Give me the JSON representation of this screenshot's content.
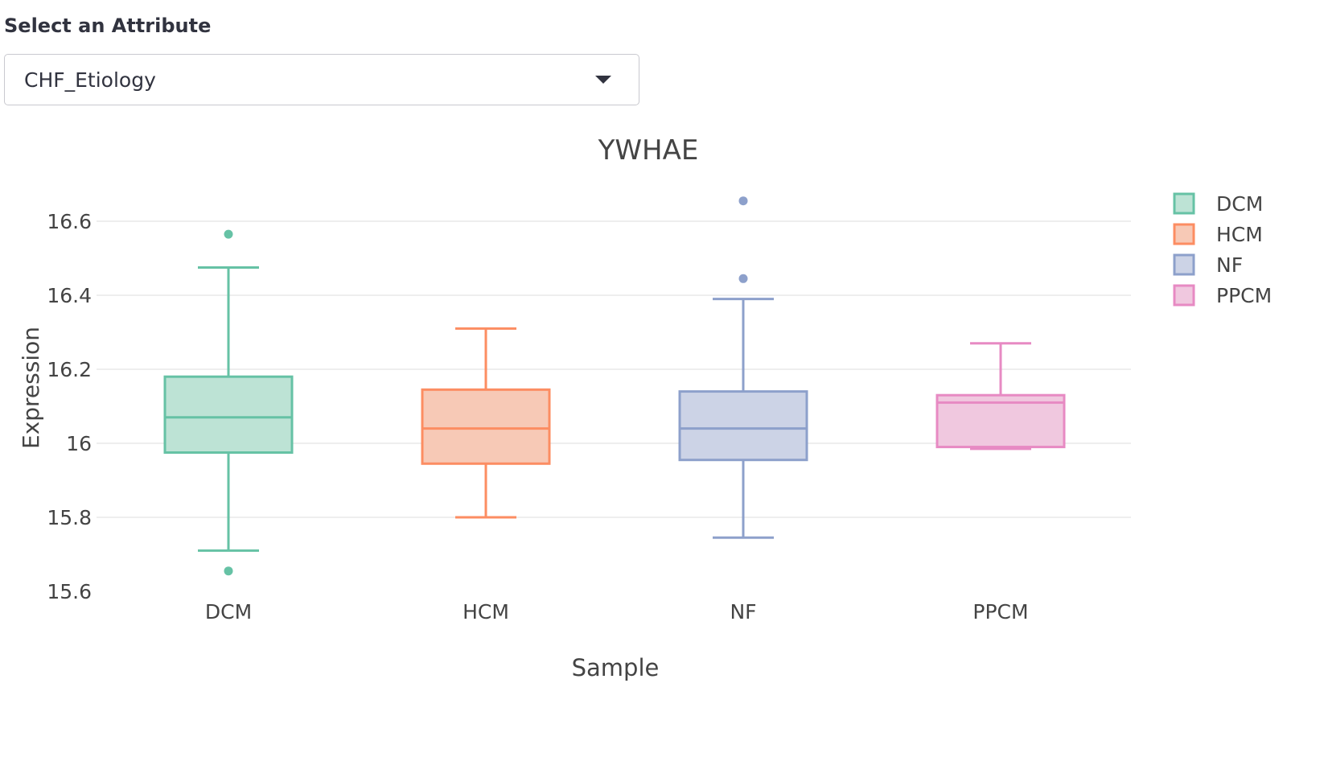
{
  "control": {
    "label": "Select an Attribute",
    "selected": "CHF_Etiology"
  },
  "chart_data": {
    "type": "box",
    "title": "YWHAE",
    "xlabel": "Sample",
    "ylabel": "Expression",
    "ylim": [
      15.6,
      16.7
    ],
    "yticks": [
      15.6,
      15.8,
      16,
      16.2,
      16.4,
      16.6
    ],
    "ytick_labels": [
      "15.6",
      "15.8",
      "16",
      "16.2",
      "16.4",
      "16.6"
    ],
    "grid": true,
    "legend_position": "top-right",
    "categories": [
      "DCM",
      "HCM",
      "NF",
      "PPCM"
    ],
    "series": [
      {
        "name": "DCM",
        "color": "#66c2a5",
        "fill": "#bde3d5",
        "min": 15.71,
        "q1": 15.975,
        "median": 16.07,
        "q3": 16.18,
        "max": 16.475,
        "outliers": [
          16.565,
          15.655
        ]
      },
      {
        "name": "HCM",
        "color": "#fc8d62",
        "fill": "#f7c9b6",
        "min": 15.8,
        "q1": 15.945,
        "median": 16.04,
        "q3": 16.145,
        "max": 16.31,
        "outliers": []
      },
      {
        "name": "NF",
        "color": "#8da0cb",
        "fill": "#ccd3e6",
        "min": 15.745,
        "q1": 15.955,
        "median": 16.04,
        "q3": 16.14,
        "max": 16.39,
        "outliers": [
          16.655,
          16.445
        ]
      },
      {
        "name": "PPCM",
        "color": "#e78ac3",
        "fill": "#f0c8df",
        "min": 15.985,
        "q1": 15.99,
        "median": 16.11,
        "q3": 16.13,
        "max": 16.27,
        "outliers": []
      }
    ]
  }
}
